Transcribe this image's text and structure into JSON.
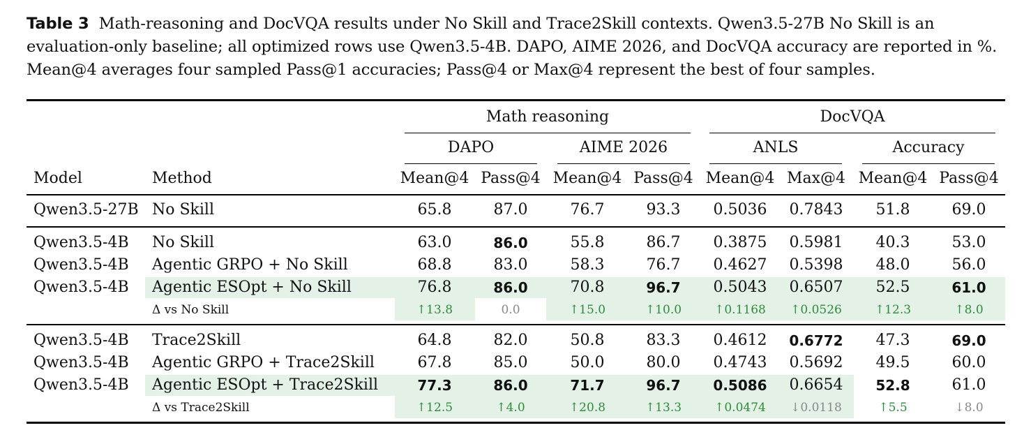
{
  "caption": {
    "label": "Table 3",
    "text": "Math-reasoning and DocVQA results under No Skill and Trace2Skill contexts. Qwen3.5-27B No Skill is an evaluation-only baseline; all optimized rows use Qwen3.5-4B. DAPO, AIME 2026, and DocVQA accuracy are reported in %. Mean@4 averages four sampled Pass@1 accuracies; Pass@4 or Max@4 represent the best of four samples."
  },
  "headers": {
    "group_math": "Math reasoning",
    "group_docvqa": "DocVQA",
    "sub_dapo": "DAPO",
    "sub_aime": "AIME 2026",
    "sub_anls": "ANLS",
    "sub_acc": "Accuracy",
    "col_model": "Model",
    "col_method": "Method",
    "cols": [
      "Mean@4",
      "Pass@4",
      "Mean@4",
      "Pass@4",
      "Mean@4",
      "Max@4",
      "Mean@4",
      "Pass@4"
    ]
  },
  "rows": [
    {
      "model": "Qwen3.5-27B",
      "method": "No Skill",
      "values": [
        "65.8",
        "87.0",
        "76.7",
        "93.3",
        "0.5036",
        "0.7843",
        "51.8",
        "69.0"
      ]
    },
    {
      "model": "Qwen3.5-4B",
      "method": "No Skill",
      "values": [
        "63.0",
        "86.0",
        "55.8",
        "86.7",
        "0.3875",
        "0.5981",
        "40.3",
        "53.0"
      ]
    },
    {
      "model": "Qwen3.5-4B",
      "method": "Agentic GRPO + No Skill",
      "values": [
        "68.8",
        "83.0",
        "58.3",
        "76.7",
        "0.4627",
        "0.5398",
        "48.0",
        "56.0"
      ]
    },
    {
      "model": "Qwen3.5-4B",
      "method": "Agentic ESOpt + No Skill",
      "values": [
        "76.8",
        "86.0",
        "70.8",
        "96.7",
        "0.5043",
        "0.6507",
        "52.5",
        "61.0"
      ]
    },
    {
      "model": "",
      "method": "Δ vs No Skill",
      "values": [
        "↑13.8",
        "0.0",
        "↑15.0",
        "↑10.0",
        "↑0.1168",
        "↑0.0526",
        "↑12.3",
        "↑8.0"
      ]
    },
    {
      "model": "Qwen3.5-4B",
      "method": "Trace2Skill",
      "values": [
        "64.8",
        "82.0",
        "50.8",
        "83.3",
        "0.4612",
        "0.6772",
        "47.3",
        "69.0"
      ]
    },
    {
      "model": "Qwen3.5-4B",
      "method": "Agentic GRPO + Trace2Skill",
      "values": [
        "67.8",
        "85.0",
        "50.0",
        "80.0",
        "0.4743",
        "0.5692",
        "49.5",
        "60.0"
      ]
    },
    {
      "model": "Qwen3.5-4B",
      "method": "Agentic ESOpt + Trace2Skill",
      "values": [
        "77.3",
        "86.0",
        "71.7",
        "96.7",
        "0.5086",
        "0.6654",
        "52.8",
        "61.0"
      ]
    },
    {
      "model": "",
      "method": "Δ vs Trace2Skill",
      "values": [
        "↑12.5",
        "↑4.0",
        "↑20.8",
        "↑13.3",
        "↑0.0474",
        "↓0.0118",
        "↑5.5",
        "↓8.0"
      ]
    }
  ],
  "colors": {
    "highlight": "#e3f1e6",
    "delta_positive": "#2e8b3a",
    "delta_neutral": "#888888"
  }
}
